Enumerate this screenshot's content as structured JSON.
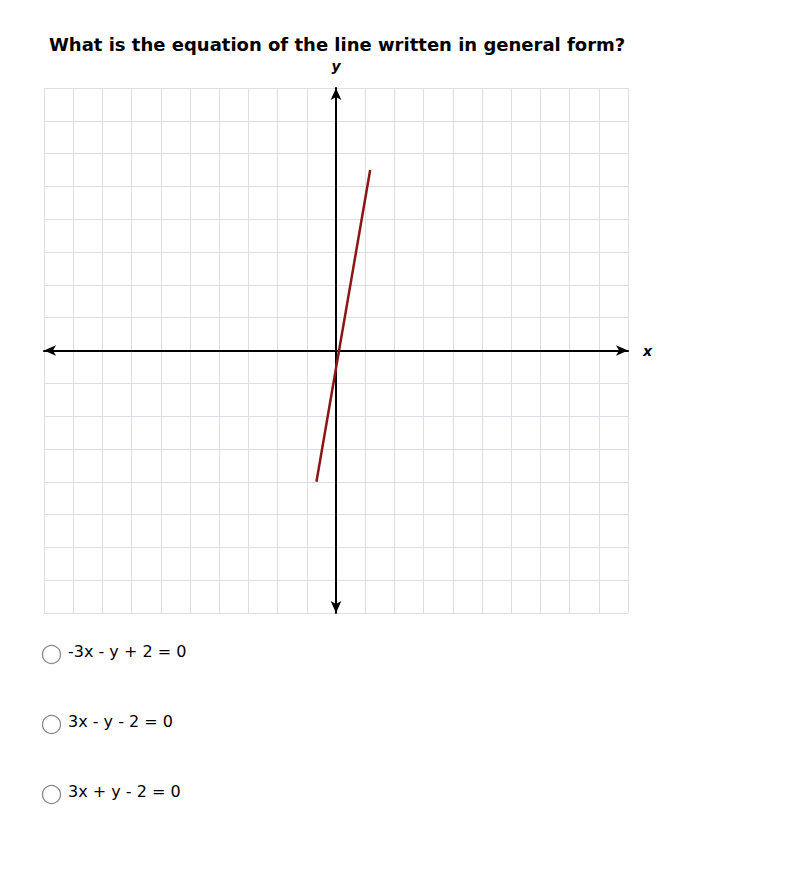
{
  "chart_data": {
    "type": "line",
    "title": "What is the equation of the line written in general form?",
    "x": [
      -0.67,
      1.17
    ],
    "values": [
      -4.0,
      5.5
    ],
    "color": "#8b1515",
    "xlabel": "x",
    "ylabel": "y",
    "xlim": [
      -10,
      10
    ],
    "xticks": [
      -10,
      -9,
      -8,
      -7,
      -6,
      -5,
      -4,
      -3,
      -2,
      -1,
      0,
      1,
      2,
      3,
      4,
      5,
      6,
      7,
      8,
      9,
      10
    ],
    "ylim": [
      -8,
      8
    ],
    "yticks": [
      -8,
      -7,
      -6,
      -5,
      -4,
      -3,
      -2,
      -1,
      0,
      1,
      2,
      3,
      4,
      5,
      6,
      7,
      8
    ],
    "grid": true,
    "tick_labels": false,
    "annotations": [
      "-3x - y + 2 = 0",
      "3x - y - 2 = 0",
      "3x + y - 2 = 0"
    ]
  }
}
